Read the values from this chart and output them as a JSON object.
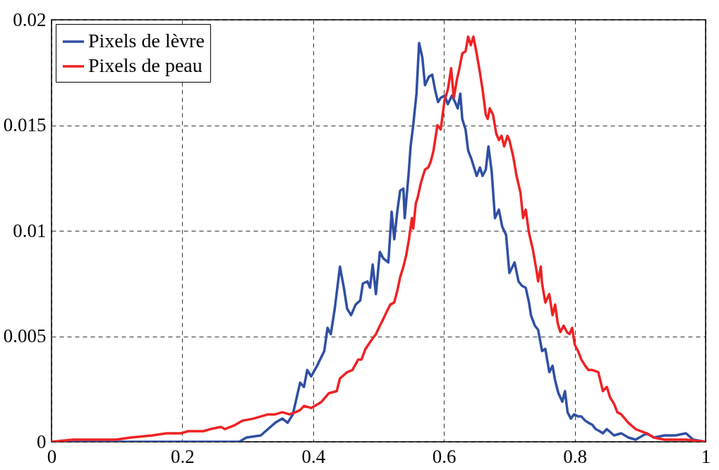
{
  "chart_data": {
    "type": "line",
    "xlim": [
      0,
      1
    ],
    "ylim": [
      0,
      0.02
    ],
    "xticks": [
      0,
      0.2,
      0.4,
      0.6,
      0.8,
      1
    ],
    "yticks": [
      0,
      0.005,
      0.01,
      0.015,
      0.02
    ],
    "grid": true,
    "legend": "top left",
    "series": [
      {
        "name": "Pixels de lèvre",
        "color": "#2f4fa2",
        "x": [
          0,
          0.198,
          0.287,
          0.298,
          0.32,
          0.331,
          0.342,
          0.353,
          0.361,
          0.369,
          0.38,
          0.386,
          0.391,
          0.397,
          0.406,
          0.417,
          0.422,
          0.427,
          0.433,
          0.441,
          0.447,
          0.452,
          0.458,
          0.465,
          0.472,
          0.476,
          0.483,
          0.487,
          0.491,
          0.496,
          0.502,
          0.507,
          0.515,
          0.52,
          0.524,
          0.529,
          0.533,
          0.538,
          0.54,
          0.546,
          0.549,
          0.553,
          0.558,
          0.562,
          0.567,
          0.571,
          0.577,
          0.582,
          0.587,
          0.591,
          0.595,
          0.601,
          0.606,
          0.612,
          0.617,
          0.621,
          0.625,
          0.628,
          0.633,
          0.637,
          0.642,
          0.647,
          0.65,
          0.655,
          0.659,
          0.664,
          0.668,
          0.673,
          0.678,
          0.684,
          0.689,
          0.695,
          0.7,
          0.708,
          0.714,
          0.719,
          0.725,
          0.73,
          0.733,
          0.739,
          0.744,
          0.75,
          0.755,
          0.761,
          0.766,
          0.77,
          0.775,
          0.781,
          0.785,
          0.789,
          0.794,
          0.799,
          0.805,
          0.81,
          0.816,
          0.821,
          0.827,
          0.832,
          0.838,
          0.843,
          0.849,
          0.86,
          0.871,
          0.882,
          0.893,
          0.91,
          0.921,
          0.937,
          0.954,
          0.97,
          0.981,
          1
        ],
        "values": [
          0,
          0,
          0,
          0.0002,
          0.0003,
          0.0006,
          0.0009,
          0.0011,
          0.0009,
          0.0013,
          0.0028,
          0.0026,
          0.0034,
          0.0031,
          0.0036,
          0.0043,
          0.0054,
          0.0051,
          0.0063,
          0.0083,
          0.0073,
          0.0063,
          0.006,
          0.0065,
          0.0067,
          0.0075,
          0.0076,
          0.0073,
          0.0084,
          0.007,
          0.009,
          0.0087,
          0.0085,
          0.0109,
          0.0096,
          0.011,
          0.0119,
          0.012,
          0.0106,
          0.0127,
          0.014,
          0.015,
          0.0165,
          0.0189,
          0.0182,
          0.0169,
          0.0173,
          0.0174,
          0.0166,
          0.0161,
          0.0163,
          0.0164,
          0.016,
          0.0164,
          0.0161,
          0.0158,
          0.0165,
          0.0153,
          0.0148,
          0.0138,
          0.0134,
          0.0129,
          0.0126,
          0.013,
          0.0126,
          0.0129,
          0.014,
          0.0128,
          0.0106,
          0.011,
          0.0102,
          0.0098,
          0.008,
          0.0085,
          0.0076,
          0.0074,
          0.0073,
          0.0066,
          0.006,
          0.0055,
          0.0053,
          0.0043,
          0.0044,
          0.0033,
          0.0036,
          0.0029,
          0.0023,
          0.0019,
          0.0024,
          0.0014,
          0.0011,
          0.0013,
          0.0012,
          0.0012,
          0.001,
          0.0009,
          0.0008,
          0.0006,
          0.0005,
          0.0004,
          0.0006,
          0.0003,
          0.0004,
          0.0002,
          0.0001,
          0.0004,
          0.0002,
          0.0003,
          0.0003,
          0.0004,
          0.0001,
          0
        ]
      },
      {
        "name": "Pixels de peau",
        "color": "#ee2224",
        "x": [
          0,
          0.033,
          0.099,
          0.121,
          0.154,
          0.176,
          0.198,
          0.209,
          0.232,
          0.243,
          0.259,
          0.265,
          0.281,
          0.292,
          0.309,
          0.32,
          0.331,
          0.342,
          0.353,
          0.364,
          0.373,
          0.38,
          0.386,
          0.397,
          0.408,
          0.413,
          0.424,
          0.436,
          0.441,
          0.452,
          0.46,
          0.469,
          0.474,
          0.48,
          0.491,
          0.496,
          0.502,
          0.507,
          0.513,
          0.518,
          0.524,
          0.529,
          0.533,
          0.538,
          0.542,
          0.546,
          0.551,
          0.553,
          0.557,
          0.56,
          0.565,
          0.571,
          0.576,
          0.58,
          0.584,
          0.59,
          0.595,
          0.598,
          0.601,
          0.606,
          0.611,
          0.615,
          0.62,
          0.623,
          0.628,
          0.633,
          0.637,
          0.641,
          0.645,
          0.65,
          0.655,
          0.659,
          0.664,
          0.667,
          0.67,
          0.675,
          0.68,
          0.684,
          0.688,
          0.692,
          0.697,
          0.7,
          0.706,
          0.711,
          0.717,
          0.721,
          0.725,
          0.73,
          0.736,
          0.741,
          0.744,
          0.748,
          0.75,
          0.755,
          0.761,
          0.766,
          0.77,
          0.774,
          0.778,
          0.783,
          0.788,
          0.792,
          0.796,
          0.8,
          0.805,
          0.81,
          0.816,
          0.821,
          0.827,
          0.836,
          0.843,
          0.849,
          0.854,
          0.86,
          0.865,
          0.871,
          0.882,
          0.893,
          0.91,
          0.921,
          0.937,
          0.97,
          1
        ],
        "values": [
          0,
          0.0001,
          0.0001,
          0.0002,
          0.0003,
          0.0004,
          0.0004,
          0.0005,
          0.0005,
          0.0006,
          0.0007,
          0.0006,
          0.0008,
          0.001,
          0.0011,
          0.0012,
          0.0013,
          0.0013,
          0.0014,
          0.0013,
          0.0014,
          0.0015,
          0.0017,
          0.0016,
          0.0018,
          0.0019,
          0.0023,
          0.0024,
          0.003,
          0.0033,
          0.0034,
          0.0039,
          0.0039,
          0.0044,
          0.0049,
          0.0051,
          0.0055,
          0.0058,
          0.0062,
          0.0065,
          0.0066,
          0.0072,
          0.0078,
          0.0083,
          0.0088,
          0.0095,
          0.0106,
          0.0101,
          0.0113,
          0.0116,
          0.0123,
          0.0129,
          0.013,
          0.0133,
          0.0138,
          0.015,
          0.0148,
          0.0155,
          0.0162,
          0.0167,
          0.0177,
          0.0163,
          0.0172,
          0.0176,
          0.0184,
          0.0185,
          0.0192,
          0.0188,
          0.0192,
          0.0184,
          0.0175,
          0.0167,
          0.0155,
          0.0153,
          0.0158,
          0.0155,
          0.0146,
          0.0143,
          0.0145,
          0.014,
          0.0145,
          0.0143,
          0.0135,
          0.0126,
          0.0118,
          0.0106,
          0.011,
          0.0099,
          0.0091,
          0.0082,
          0.0076,
          0.0083,
          0.0075,
          0.0066,
          0.007,
          0.006,
          0.0065,
          0.0056,
          0.0052,
          0.0055,
          0.0052,
          0.0051,
          0.0054,
          0.0046,
          0.0043,
          0.0039,
          0.0036,
          0.0034,
          0.0034,
          0.0033,
          0.0024,
          0.0026,
          0.0021,
          0.0018,
          0.0014,
          0.0013,
          0.0009,
          0.0006,
          0.0004,
          0.0002,
          0.0001,
          0.0001,
          0
        ]
      }
    ]
  }
}
